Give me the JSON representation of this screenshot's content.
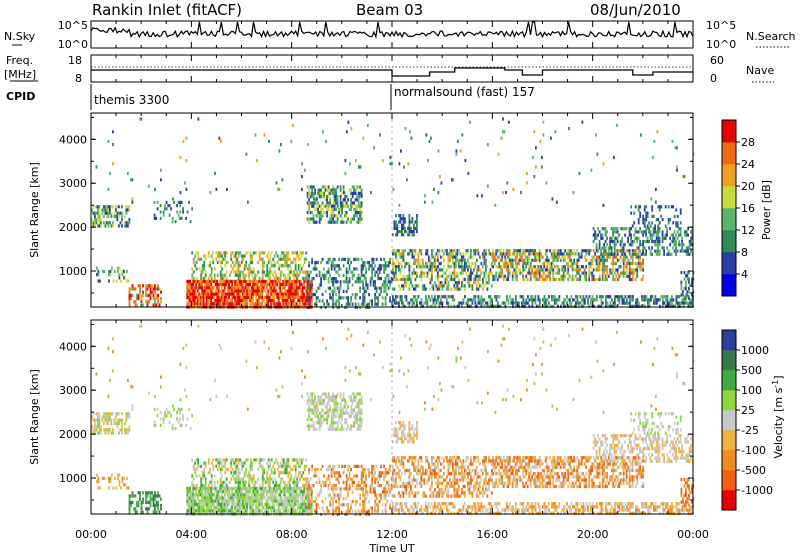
{
  "header": {
    "station": "Rankin Inlet (fitACF)",
    "beam": "Beam 03",
    "date": "08/Jun/2010"
  },
  "noise_panel": {
    "left_label": "N.Sky",
    "right_label": "N.Search",
    "left_ticks": [
      "10^5",
      "10^0"
    ],
    "right_ticks": [
      "10^5",
      "10^0"
    ]
  },
  "freq_panel": {
    "left_label_1": "Freq.",
    "left_label_2": "[MHz]",
    "right_label": "Nave",
    "left_ticks": [
      "18",
      "8"
    ],
    "right_ticks": [
      "60",
      "0"
    ]
  },
  "cpid": {
    "label": "CPID",
    "modes": [
      {
        "name": "themis 3300",
        "start_hour": 0
      },
      {
        "name": "normalsound (fast) 157",
        "start_hour": 12
      }
    ]
  },
  "time_axis": {
    "label": "Time UT",
    "ticks": [
      "00:00",
      "04:00",
      "08:00",
      "12:00",
      "16:00",
      "20:00",
      "00:00"
    ]
  },
  "chart_data": [
    {
      "type": "heatmap",
      "ylabel": "Slant Range [km]",
      "ylim": [
        180,
        4600
      ],
      "xlim_hours": [
        0,
        24
      ],
      "y_ticks": [
        "1000",
        "2000",
        "3000",
        "4000"
      ],
      "colorbar_label": "Power [dB]",
      "colorbar_ticks": [
        "4",
        "8",
        "12",
        "16",
        "20",
        "24",
        "28"
      ],
      "colors": [
        "#0000e6",
        "#2c3fa8",
        "#2e8b57",
        "#5ab56a",
        "#c8dc3c",
        "#f0a020",
        "#f06a14",
        "#e60000"
      ]
    },
    {
      "type": "heatmap",
      "ylabel": "Slant Range [km]",
      "ylim": [
        180,
        4600
      ],
      "xlim_hours": [
        0,
        24
      ],
      "y_ticks": [
        "1000",
        "2000",
        "3000",
        "4000"
      ],
      "colorbar_label": "Velocity [m s^-1]",
      "colorbar_ticks": [
        "1000",
        "500",
        "100",
        "25",
        "-25",
        "-100",
        "-500",
        "-1000"
      ],
      "colors": [
        "#2a3fa0",
        "#3a7a4a",
        "#3faa3f",
        "#8fd640",
        "#c8c8c8",
        "#f0b040",
        "#f08c20",
        "#f06010",
        "#e60000"
      ]
    }
  ]
}
